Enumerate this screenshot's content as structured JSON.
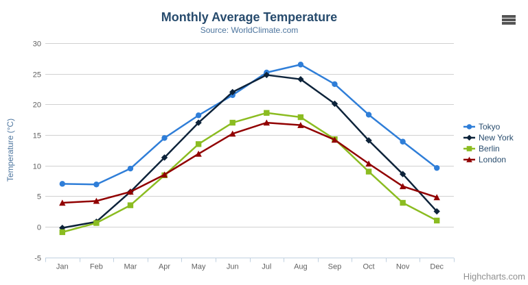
{
  "chart": {
    "title": "Monthly Average Temperature",
    "subtitle": "Source: WorldClimate.com",
    "y_axis_title": "Temperature (°C)",
    "credits": "Highcharts.com"
  },
  "icons": {
    "context_menu": "hamburger-icon"
  },
  "colors": {
    "title_text": "#274b6d",
    "subtitle_text": "#4d759e",
    "axis_label_text": "#606060",
    "axis_line": "#c0d0e0",
    "gridline": "#d0d0d0",
    "legend_text": "#274b6d",
    "credits_text": "#909090",
    "burger_icon": "#545454"
  },
  "chart_data": {
    "type": "line",
    "title": "Monthly Average Temperature",
    "subtitle": "Source: WorldClimate.com",
    "xlabel": "",
    "ylabel": "Temperature (°C)",
    "categories": [
      "Jan",
      "Feb",
      "Mar",
      "Apr",
      "May",
      "Jun",
      "Jul",
      "Aug",
      "Sep",
      "Oct",
      "Nov",
      "Dec"
    ],
    "ylim": [
      -5,
      30
    ],
    "yticks": [
      -5,
      0,
      5,
      10,
      15,
      20,
      25,
      30
    ],
    "grid": true,
    "legend_position": "right",
    "series": [
      {
        "name": "Tokyo",
        "color": "#2f7ed8",
        "marker": "circle",
        "values": [
          7.0,
          6.9,
          9.5,
          14.5,
          18.2,
          21.5,
          25.2,
          26.5,
          23.3,
          18.3,
          13.9,
          9.6
        ]
      },
      {
        "name": "New York",
        "color": "#0d233a",
        "marker": "diamond",
        "values": [
          -0.2,
          0.8,
          5.7,
          11.3,
          17.0,
          22.0,
          24.8,
          24.1,
          20.1,
          14.1,
          8.6,
          2.5
        ]
      },
      {
        "name": "Berlin",
        "color": "#8bbc21",
        "marker": "square",
        "values": [
          -0.9,
          0.6,
          3.5,
          8.4,
          13.5,
          17.0,
          18.6,
          17.9,
          14.3,
          9.0,
          3.9,
          1.0
        ]
      },
      {
        "name": "London",
        "color": "#910000",
        "marker": "triangle",
        "values": [
          3.9,
          4.2,
          5.7,
          8.5,
          11.9,
          15.2,
          17.0,
          16.6,
          14.2,
          10.3,
          6.6,
          4.8
        ]
      }
    ]
  }
}
